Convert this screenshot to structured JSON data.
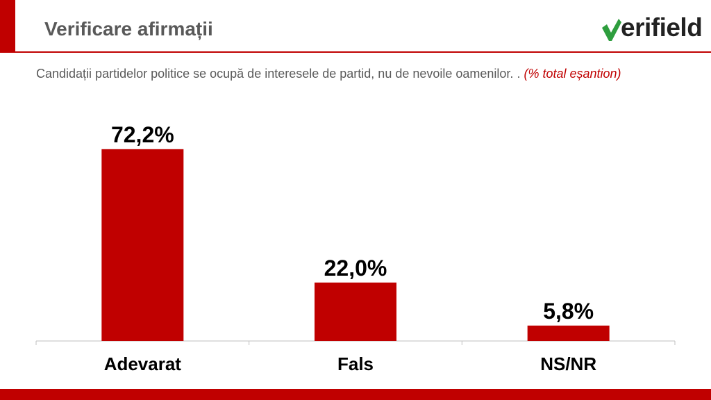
{
  "header": {
    "title": "Verificare afirmații",
    "logo_text": "erifield"
  },
  "question": {
    "text": "Candidații partidelor politice se ocupă de interesele de partid, nu de nevoile oamenilor. . ",
    "note": "(% total eșantion)"
  },
  "colors": {
    "brand_red": "#c00000",
    "logo_green": "#2e9e3e",
    "logo_dark": "#222222",
    "header_text": "#595959"
  },
  "chart_data": {
    "type": "bar",
    "categories": [
      "Adevarat",
      "Fals",
      "NS/NR"
    ],
    "values": [
      72.2,
      22.0,
      5.8
    ],
    "value_labels": [
      "72,2%",
      "22,0%",
      "5,8%"
    ],
    "ylim": [
      0,
      80
    ],
    "grid": false,
    "legend": "none"
  }
}
